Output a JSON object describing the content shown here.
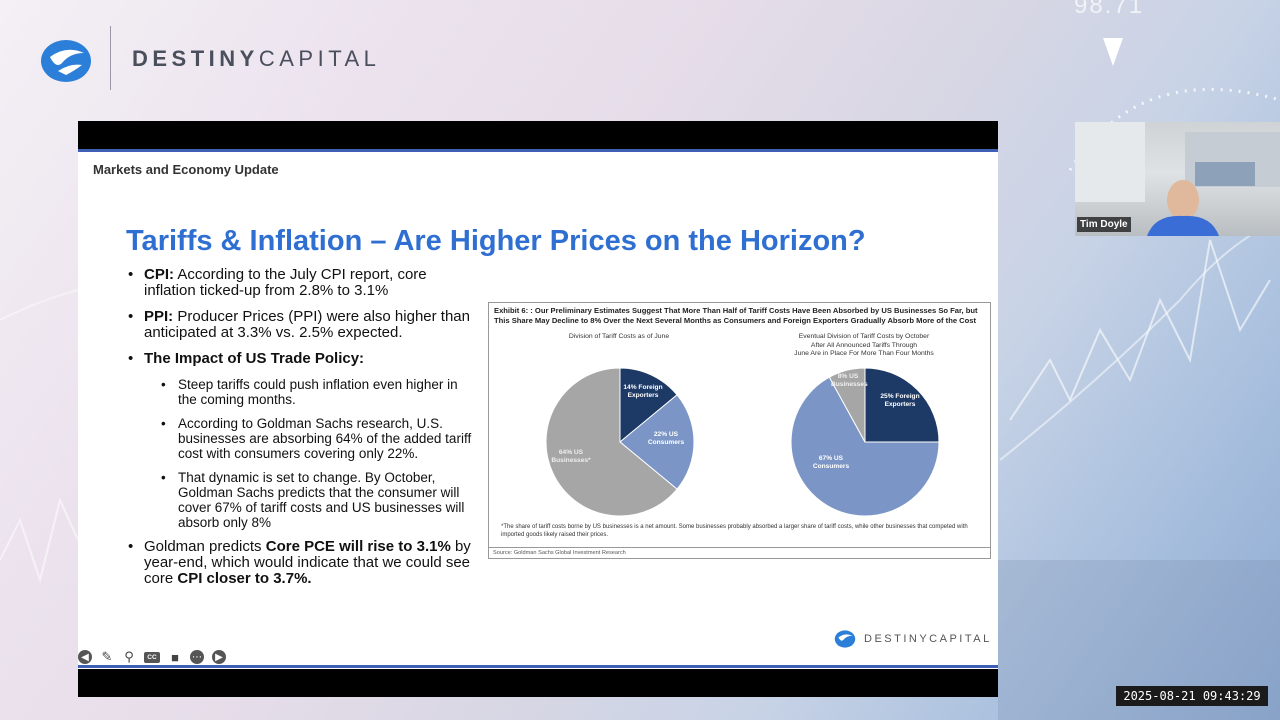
{
  "brand": {
    "name_bold": "DESTINY",
    "name_light": "CAPITAL"
  },
  "background": {
    "overlay_number": "98.71"
  },
  "slide": {
    "section_title": "Markets and Economy Update",
    "title": "Tariffs & Inflation – Are Higher Prices on the Horizon?",
    "bullets": {
      "cpi": {
        "label": "CPI:",
        "text": " According to the July CPI report, core inflation ticked-up from 2.8% to 3.1%"
      },
      "ppi": {
        "label": "PPI:",
        "text": " Producer Prices (PPI) were also higher than anticipated at 3.3% vs. 2.5% expected."
      },
      "impact": {
        "label": "The Impact of US Trade Policy:"
      },
      "sub": [
        "Steep tariffs could push inflation even higher in the coming months.",
        "According to Goldman Sachs research, U.S. businesses are absorbing 64% of the added tariff cost with consumers covering only 22%.",
        "That dynamic is set to change. By October, Goldman Sachs predicts that the consumer will cover 67% of tariff costs and US businesses will absorb only 8%"
      ],
      "goldman": {
        "t1": "Goldman predicts ",
        "b1": "Core PCE will rise to 3.1%",
        "t2": " by year-end, which would indicate that we could see core ",
        "b2": "CPI closer to 3.7%."
      }
    },
    "exhibit": {
      "title": "Exhibit 6: : Our Preliminary Estimates Suggest That More Than Half of Tariff Costs Have Been Absorbed by US Businesses So Far, but This Share May Decline to 8% Over the Next Several Months as Consumers and Foreign Exporters Gradually Absorb More of the Cost",
      "left_subtitle": "Division of Tariff Costs as of June",
      "right_subtitle_1": "Eventual Division of Tariff Costs by October",
      "right_subtitle_2": "After All Announced Tariffs Through",
      "right_subtitle_3": "June Are in Place For More Than Four Months",
      "footnote": "*The share of tariff costs borne by US businesses is a net amount. Some businesses probably absorbed a larger share of tariff costs, while other businesses that competed with imported goods likely raised their prices.",
      "source": "Source: Goldman Sachs Global Investment Research"
    },
    "logo_text": "DESTINYCAPITAL",
    "toolbar": {
      "cc_label": "CC"
    }
  },
  "chart_data": [
    {
      "type": "pie",
      "title": "Division of Tariff Costs as of June",
      "categories": [
        "Foreign Exporters",
        "US Consumers",
        "US Businesses*"
      ],
      "values": [
        14,
        22,
        64
      ],
      "labels": [
        "14% Foreign Exporters",
        "22% US Consumers",
        "64% US Businesses*"
      ],
      "colors": [
        "#1d3a66",
        "#7b96c6",
        "#a6a6a6"
      ]
    },
    {
      "type": "pie",
      "title": "Eventual Division of Tariff Costs by October After All Announced Tariffs Through June Are in Place For More Than Four Months",
      "categories": [
        "Foreign Exporters",
        "US Consumers",
        "US Businesses"
      ],
      "values": [
        25,
        67,
        8
      ],
      "labels": [
        "25% Foreign Exporters",
        "67% US Consumers",
        "8% US Businesses"
      ],
      "colors": [
        "#1d3a66",
        "#7b96c6",
        "#a6a6a6"
      ]
    }
  ],
  "participant": {
    "name": "Tim Doyle"
  },
  "timestamp": "2025-08-21  09:43:29"
}
